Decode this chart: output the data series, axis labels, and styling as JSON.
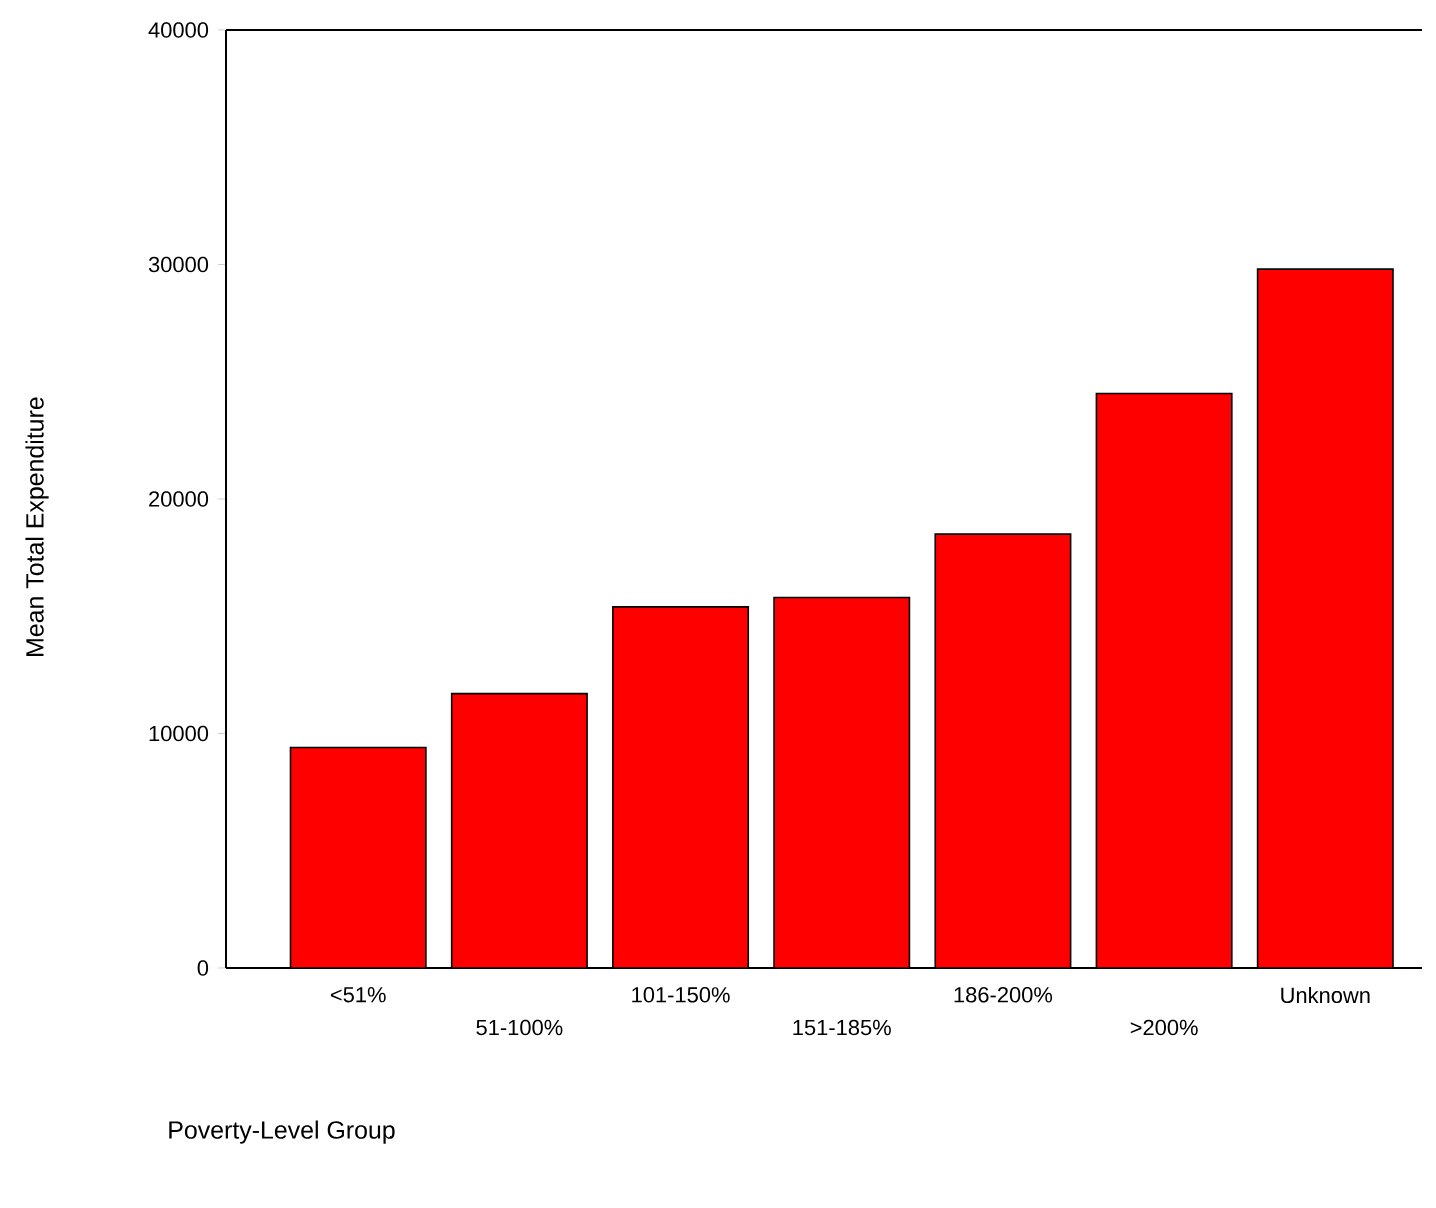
{
  "chart_data": {
    "type": "bar",
    "xlabel": "Poverty-Level Group",
    "ylabel": "Mean Total Expenditure",
    "categories": [
      "<51%",
      "51-100%",
      "101-150%",
      "151-185%",
      "186-200%",
      ">200%",
      "Unknown"
    ],
    "values": [
      9400,
      11700,
      15400,
      15800,
      18500,
      24500,
      29800
    ],
    "color": "#ff0000",
    "ylim": [
      0,
      40000
    ],
    "yticks": [
      0,
      10000,
      20000,
      30000,
      40000
    ]
  }
}
